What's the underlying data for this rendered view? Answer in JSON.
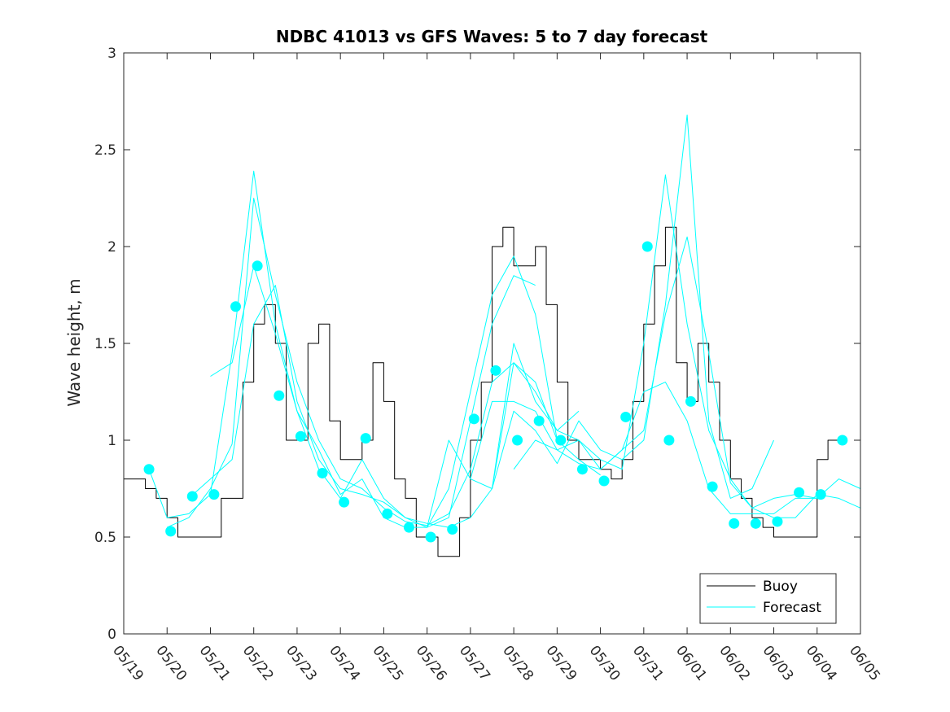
{
  "chart_data": {
    "type": "line",
    "title": "NDBC 41013 vs GFS Waves: 5 to 7 day forecast",
    "xlabel": "",
    "ylabel": "Wave height, m",
    "xlim": [
      "2019-05-19",
      "2019-06-05"
    ],
    "ylim": [
      0,
      3
    ],
    "x_tick_labels": [
      "05/19",
      "05/20",
      "05/21",
      "05/22",
      "05/23",
      "05/24",
      "05/25",
      "05/26",
      "05/27",
      "05/28",
      "05/29",
      "05/30",
      "05/31",
      "06/01",
      "06/02",
      "06/03",
      "06/04",
      "06/05"
    ],
    "y_ticks": [
      0,
      0.5,
      1,
      1.5,
      2,
      2.5,
      3
    ],
    "y_tick_labels": [
      "0",
      "0.5",
      "1",
      "1.5",
      "2",
      "2.5",
      "3"
    ],
    "grid": false,
    "legend_position": "bottom-right",
    "legend": [
      "Buoy",
      "Forecast"
    ],
    "colors": {
      "buoy": "#000000",
      "forecast": "#00ffff",
      "axis": "#262626"
    },
    "series": [
      {
        "name": "Buoy",
        "style": "line",
        "x": [
          "2019-05-19 00:00",
          "2019-05-19 06:00",
          "2019-05-19 12:00",
          "2019-05-19 18:00",
          "2019-05-20 00:00",
          "2019-05-20 06:00",
          "2019-05-20 12:00",
          "2019-05-20 18:00",
          "2019-05-21 00:00",
          "2019-05-21 06:00",
          "2019-05-21 12:00",
          "2019-05-21 18:00",
          "2019-05-22 00:00",
          "2019-05-22 06:00",
          "2019-05-22 12:00",
          "2019-05-22 18:00",
          "2019-05-23 00:00",
          "2019-05-23 06:00",
          "2019-05-23 12:00",
          "2019-05-23 18:00",
          "2019-05-24 00:00",
          "2019-05-24 06:00",
          "2019-05-24 12:00",
          "2019-05-24 18:00",
          "2019-05-25 00:00",
          "2019-05-25 06:00",
          "2019-05-25 12:00",
          "2019-05-25 18:00",
          "2019-05-26 00:00",
          "2019-05-26 06:00",
          "2019-05-26 12:00",
          "2019-05-26 18:00",
          "2019-05-27 00:00",
          "2019-05-27 06:00",
          "2019-05-27 12:00",
          "2019-05-27 18:00",
          "2019-05-28 00:00",
          "2019-05-28 06:00",
          "2019-05-28 12:00",
          "2019-05-28 18:00",
          "2019-05-29 00:00",
          "2019-05-29 06:00",
          "2019-05-29 12:00",
          "2019-05-29 18:00",
          "2019-05-30 00:00",
          "2019-05-30 06:00",
          "2019-05-30 12:00",
          "2019-05-30 18:00",
          "2019-05-31 00:00",
          "2019-05-31 06:00",
          "2019-05-31 12:00",
          "2019-05-31 18:00",
          "2019-06-01 00:00",
          "2019-06-01 06:00",
          "2019-06-01 12:00",
          "2019-06-01 18:00",
          "2019-06-02 00:00",
          "2019-06-02 06:00",
          "2019-06-02 12:00",
          "2019-06-02 18:00",
          "2019-06-03 00:00",
          "2019-06-03 06:00",
          "2019-06-03 12:00",
          "2019-06-03 18:00",
          "2019-06-04 00:00",
          "2019-06-04 06:00",
          "2019-06-04 12:00"
        ],
        "y": [
          0.8,
          0.8,
          0.75,
          0.7,
          0.6,
          0.5,
          0.5,
          0.5,
          0.5,
          0.7,
          0.7,
          1.3,
          1.6,
          1.7,
          1.5,
          1.0,
          1.0,
          1.5,
          1.6,
          1.1,
          0.9,
          0.9,
          1.0,
          1.4,
          1.2,
          0.8,
          0.7,
          0.5,
          0.5,
          0.4,
          0.4,
          0.6,
          1.0,
          1.3,
          2.0,
          2.1,
          1.9,
          1.9,
          2.0,
          1.7,
          1.3,
          1.0,
          0.9,
          0.9,
          0.85,
          0.8,
          0.9,
          1.2,
          1.6,
          1.9,
          2.1,
          1.4,
          1.2,
          1.5,
          1.3,
          1.0,
          0.8,
          0.7,
          0.6,
          0.55,
          0.5,
          0.5,
          0.5,
          0.5,
          0.9,
          1.0,
          1.0
        ]
      },
      {
        "name": "Forecast",
        "style": "markers",
        "x": [
          "2019-05-19 14:00",
          "2019-05-20 02:00",
          "2019-05-20 14:00",
          "2019-05-21 02:00",
          "2019-05-21 14:00",
          "2019-05-22 02:00",
          "2019-05-22 14:00",
          "2019-05-23 02:00",
          "2019-05-23 14:00",
          "2019-05-24 02:00",
          "2019-05-24 14:00",
          "2019-05-25 02:00",
          "2019-05-25 14:00",
          "2019-05-26 02:00",
          "2019-05-26 14:00",
          "2019-05-27 02:00",
          "2019-05-27 14:00",
          "2019-05-28 02:00",
          "2019-05-28 14:00",
          "2019-05-29 02:00",
          "2019-05-29 14:00",
          "2019-05-30 02:00",
          "2019-05-30 14:00",
          "2019-05-31 02:00",
          "2019-05-31 14:00",
          "2019-06-01 02:00",
          "2019-06-01 14:00",
          "2019-06-02 02:00",
          "2019-06-02 14:00",
          "2019-06-03 02:00",
          "2019-06-03 14:00",
          "2019-06-04 02:00",
          "2019-06-04 14:00"
        ],
        "y": [
          0.85,
          0.53,
          0.71,
          0.72,
          1.69,
          1.9,
          1.23,
          1.02,
          0.83,
          0.68,
          1.01,
          0.62,
          0.55,
          0.5,
          0.54,
          1.11,
          1.36,
          1.0,
          1.1,
          1.0,
          0.85,
          0.79,
          1.12,
          2.0,
          1.0,
          1.2,
          0.76,
          0.57,
          0.57,
          0.58,
          0.73,
          0.72,
          1.0
        ]
      },
      {
        "name": "",
        "style": "line",
        "x": [
          "2019-05-19 14:00",
          "2019-05-20 00:00",
          "2019-05-20 12:00",
          "2019-05-21 00:00",
          "2019-05-21 12:00",
          "2019-05-22 00:00",
          "2019-05-22 12:00",
          "2019-05-23 00:00",
          "2019-05-23 12:00",
          "2019-05-24 00:00",
          "2019-05-24 12:00",
          "2019-05-25 00:00",
          "2019-05-25 12:00",
          "2019-05-26 00:00",
          "2019-05-26 12:00",
          "2019-05-27 00:00",
          "2019-05-27 12:00",
          "2019-05-28 00:00",
          "2019-05-28 12:00"
        ],
        "y": [
          0.85,
          0.6,
          0.62,
          0.72,
          1.45,
          2.39,
          1.6,
          1.15,
          0.85,
          0.7,
          0.9,
          0.7,
          0.6,
          0.55,
          0.6,
          1.1,
          1.6,
          1.85,
          1.8
        ]
      },
      {
        "name": "",
        "style": "line",
        "x": [
          "2019-05-20 00:00",
          "2019-05-20 12:00",
          "2019-05-21 00:00",
          "2019-05-21 12:00",
          "2019-05-22 00:00",
          "2019-05-22 12:00",
          "2019-05-23 00:00",
          "2019-05-23 12:00",
          "2019-05-24 00:00",
          "2019-05-24 12:00",
          "2019-05-25 00:00",
          "2019-05-25 12:00",
          "2019-05-26 00:00",
          "2019-05-26 12:00",
          "2019-05-27 00:00",
          "2019-05-27 12:00",
          "2019-05-28 00:00",
          "2019-05-28 12:00",
          "2019-05-29 00:00"
        ],
        "y": [
          0.55,
          0.6,
          0.75,
          0.98,
          2.25,
          1.75,
          1.3,
          1.0,
          0.8,
          0.75,
          0.65,
          0.58,
          0.56,
          0.62,
          0.85,
          1.3,
          1.4,
          1.3,
          1.0
        ]
      },
      {
        "name": "",
        "style": "line",
        "x": [
          "2019-05-20 12:00",
          "2019-05-21 00:00",
          "2019-05-21 12:00",
          "2019-05-22 00:00",
          "2019-05-22 12:00",
          "2019-05-23 00:00",
          "2019-05-23 12:00",
          "2019-05-24 00:00",
          "2019-05-24 12:00",
          "2019-05-25 00:00",
          "2019-05-25 12:00",
          "2019-05-26 00:00",
          "2019-05-26 12:00",
          "2019-05-27 00:00",
          "2019-05-27 12:00",
          "2019-05-28 00:00",
          "2019-05-28 12:00",
          "2019-05-29 00:00",
          "2019-05-29 12:00"
        ],
        "y": [
          0.7,
          0.8,
          0.9,
          1.6,
          1.8,
          1.2,
          0.9,
          0.75,
          0.72,
          0.68,
          0.6,
          0.57,
          0.55,
          0.6,
          0.75,
          1.5,
          1.2,
          1.05,
          1.15
        ]
      },
      {
        "name": "",
        "style": "line",
        "x": [
          "2019-05-21 00:00",
          "2019-05-21 12:00",
          "2019-05-22 00:00",
          "2019-05-22 12:00",
          "2019-05-23 00:00",
          "2019-05-23 12:00",
          "2019-05-24 00:00",
          "2019-05-24 12:00",
          "2019-05-25 00:00",
          "2019-05-25 12:00",
          "2019-05-26 00:00",
          "2019-05-26 12:00",
          "2019-05-27 00:00",
          "2019-05-27 12:00",
          "2019-05-28 00:00",
          "2019-05-28 12:00",
          "2019-05-29 00:00",
          "2019-05-29 12:00",
          "2019-05-30 00:00"
        ],
        "y": [
          1.33,
          1.4,
          1.9,
          1.55,
          1.15,
          0.95,
          0.72,
          0.8,
          0.6,
          0.55,
          0.55,
          0.75,
          1.25,
          1.75,
          1.95,
          1.65,
          1.0,
          0.9,
          0.82
        ]
      },
      {
        "name": "",
        "style": "line",
        "x": [
          "2019-05-26 00:00",
          "2019-05-26 12:00",
          "2019-05-27 00:00",
          "2019-05-27 12:00",
          "2019-05-28 00:00",
          "2019-05-28 12:00",
          "2019-05-29 00:00",
          "2019-05-29 12:00",
          "2019-05-30 00:00",
          "2019-05-30 12:00",
          "2019-05-31 00:00",
          "2019-05-31 12:00",
          "2019-06-01 00:00",
          "2019-06-01 12:00",
          "2019-06-02 00:00",
          "2019-06-02 12:00",
          "2019-06-03 00:00",
          "2019-06-03 12:00",
          "2019-06-04 00:00"
        ],
        "y": [
          0.55,
          1.0,
          0.8,
          0.75,
          1.4,
          1.25,
          1.05,
          1.0,
          0.9,
          0.85,
          1.5,
          2.37,
          1.6,
          1.05,
          0.8,
          0.65,
          0.7,
          0.72,
          0.7
        ]
      },
      {
        "name": "",
        "style": "line",
        "x": [
          "2019-05-27 00:00",
          "2019-05-27 12:00",
          "2019-05-28 00:00",
          "2019-05-28 12:00",
          "2019-05-29 00:00",
          "2019-05-29 12:00",
          "2019-05-30 00:00",
          "2019-05-30 12:00",
          "2019-05-31 00:00",
          "2019-05-31 12:00",
          "2019-06-01 00:00",
          "2019-06-01 12:00",
          "2019-06-02 00:00",
          "2019-06-02 12:00",
          "2019-06-03 00:00",
          "2019-06-03 12:00",
          "2019-06-04 00:00",
          "2019-06-04 12:00",
          "2019-06-05 00:00"
        ],
        "y": [
          0.8,
          1.2,
          1.2,
          1.15,
          0.95,
          1.0,
          0.85,
          0.95,
          1.25,
          1.3,
          1.1,
          0.75,
          0.62,
          0.62,
          0.62,
          0.7,
          0.7,
          0.8,
          0.75
        ]
      },
      {
        "name": "",
        "style": "line",
        "x": [
          "2019-05-27 12:00",
          "2019-05-28 00:00",
          "2019-05-28 12:00",
          "2019-05-29 00:00",
          "2019-05-29 12:00",
          "2019-05-30 00:00",
          "2019-05-30 12:00",
          "2019-05-31 00:00",
          "2019-05-31 12:00",
          "2019-06-01 00:00",
          "2019-06-01 12:00",
          "2019-06-02 00:00",
          "2019-06-02 12:00",
          "2019-06-03 00:00"
        ],
        "y": [
          0.75,
          1.15,
          1.05,
          0.88,
          1.1,
          0.95,
          0.9,
          1.0,
          1.7,
          2.68,
          1.1,
          0.7,
          0.75,
          1.0
        ]
      },
      {
        "name": "",
        "style": "line",
        "x": [
          "2019-05-28 00:00",
          "2019-05-28 12:00",
          "2019-05-29 00:00",
          "2019-05-29 12:00",
          "2019-05-30 00:00",
          "2019-05-30 12:00",
          "2019-05-31 00:00",
          "2019-05-31 12:00",
          "2019-06-01 00:00",
          "2019-06-01 12:00",
          "2019-06-02 00:00",
          "2019-06-02 12:00",
          "2019-06-03 00:00",
          "2019-06-03 12:00",
          "2019-06-04 00:00",
          "2019-06-04 12:00",
          "2019-06-05 00:00"
        ],
        "y": [
          0.85,
          1.0,
          0.95,
          0.88,
          0.85,
          0.95,
          1.05,
          1.65,
          2.05,
          1.45,
          0.78,
          0.65,
          0.6,
          0.6,
          0.72,
          0.7,
          0.65
        ]
      }
    ]
  }
}
